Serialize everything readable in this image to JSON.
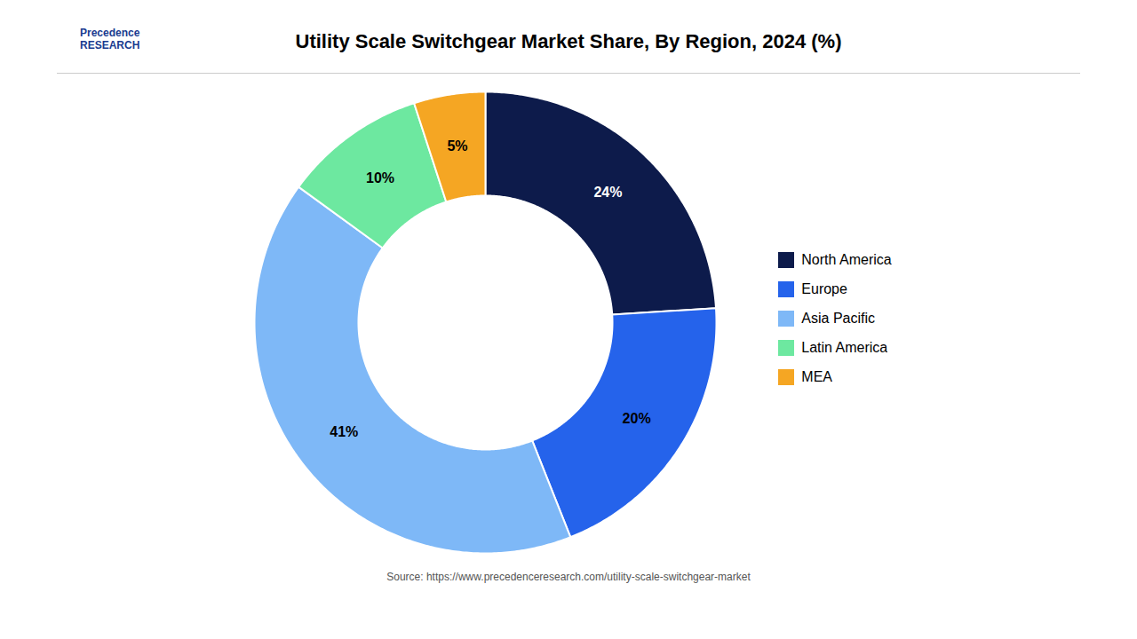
{
  "chart_data": {
    "type": "pie",
    "title": "Utility Scale Switchgear Market Share, By Region, 2024 (%)",
    "categories": [
      "North America",
      "Europe",
      "Asia Pacific",
      "Latin America",
      "MEA"
    ],
    "values": [
      24,
      20,
      41,
      10,
      5
    ],
    "value_labels": [
      "24%",
      "20%",
      "41%",
      "10%",
      "5%"
    ],
    "colors": [
      "#0d1b4b",
      "#2563eb",
      "#7eb8f7",
      "#6de8a0",
      "#f5a623"
    ],
    "annotations": [
      "Precedence\nRESEARCH",
      "Source: https://www.precedenceresearch.com/utility-scale-switchgear-market"
    ],
    "data_labels": true,
    "legend": "right",
    "tick_labels": false
  }
}
